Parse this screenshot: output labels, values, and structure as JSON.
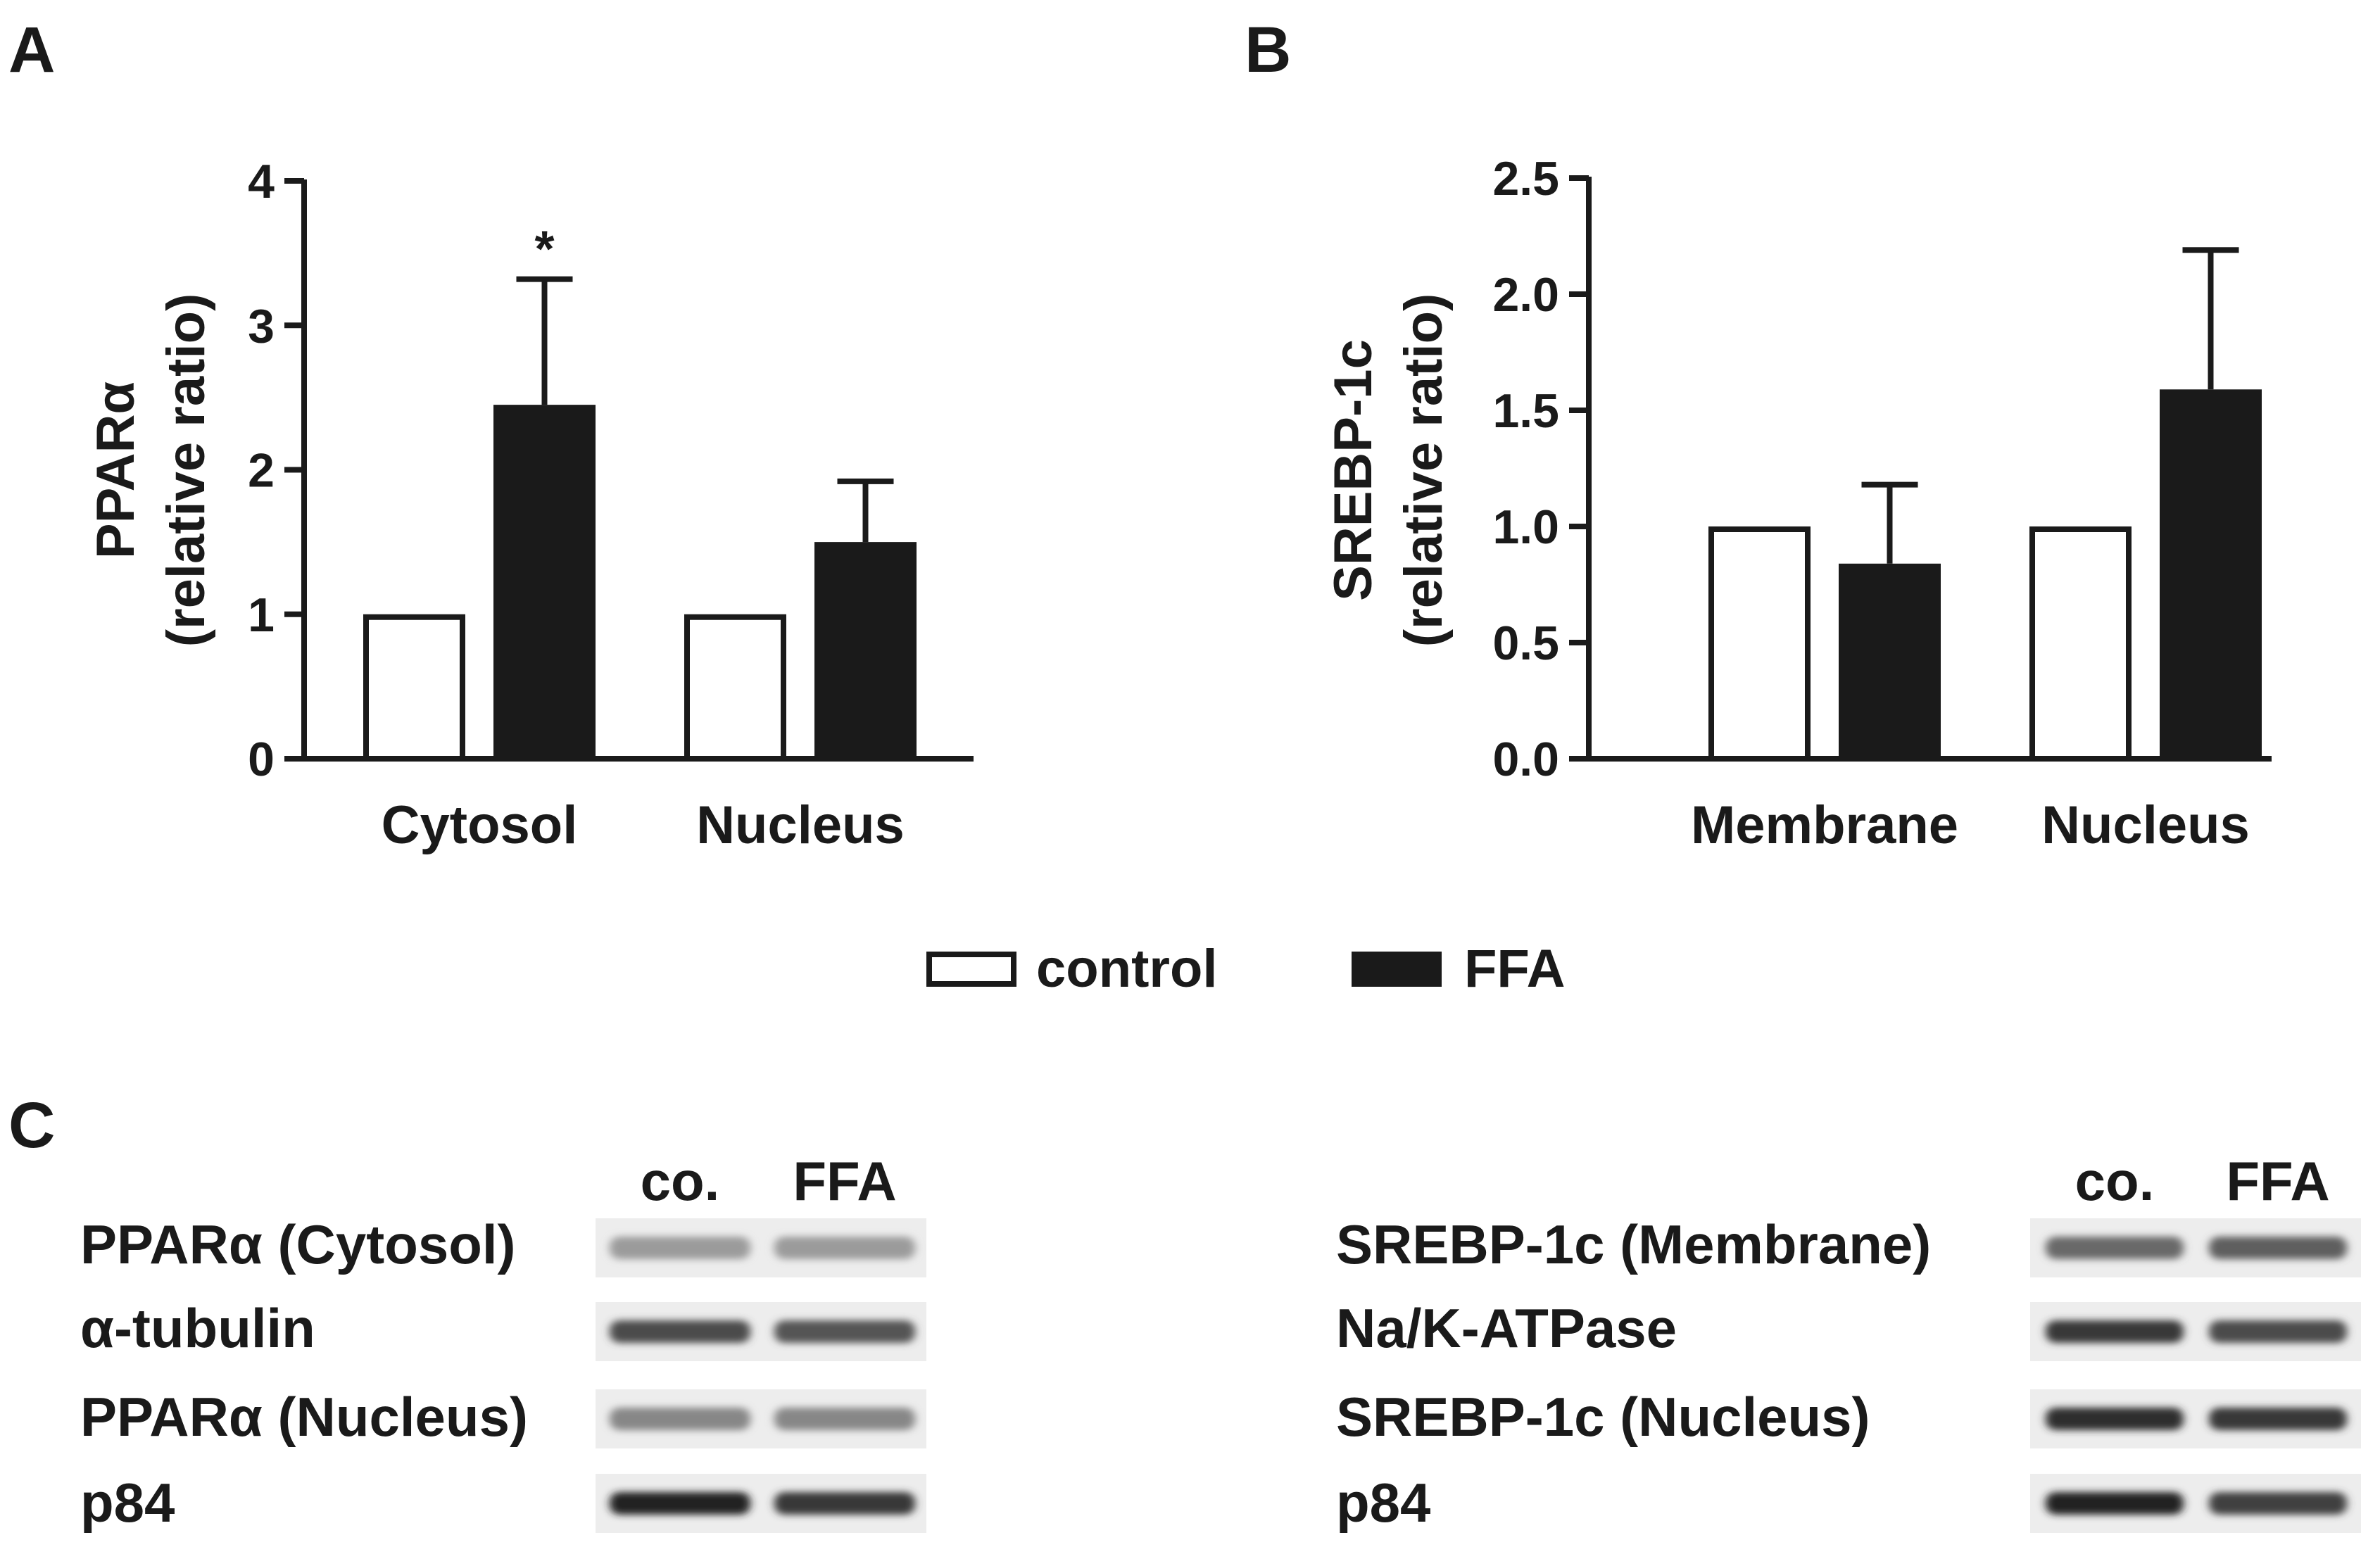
{
  "panels": {
    "a": "A",
    "b": "B",
    "c": "C"
  },
  "legend": {
    "control": "control",
    "ffa": "FFA"
  },
  "colors": {
    "control_fill": "#ffffff",
    "ffa_fill": "#1a1a1a",
    "stroke": "#1a1a1a"
  },
  "chart_data": [
    {
      "type": "bar",
      "panel": "A",
      "ylabel": "PPARα",
      "ylabel2": "(relative ratio)",
      "xlabel": "",
      "categories": [
        "Cytosol",
        "Nucleus"
      ],
      "ylim": [
        0,
        4
      ],
      "yticks": [
        "0",
        "1",
        "2",
        "3",
        "4"
      ],
      "ytick_values": [
        0,
        1,
        2,
        3,
        4
      ],
      "series": [
        {
          "name": "control",
          "values": [
            1.0,
            1.0
          ],
          "errors": [
            0,
            0
          ]
        },
        {
          "name": "FFA",
          "values": [
            2.45,
            1.5
          ],
          "errors": [
            0.87,
            0.42
          ]
        }
      ],
      "annotations": [
        {
          "text": "*",
          "category": "Cytosol",
          "series": "FFA"
        }
      ],
      "grid": false,
      "legend_position": "bottom-center"
    },
    {
      "type": "bar",
      "panel": "B",
      "ylabel": "SREBP-1c",
      "ylabel2": "(relative ratio)",
      "xlabel": "",
      "categories": [
        "Membrane",
        "Nucleus"
      ],
      "ylim": [
        0,
        2.5
      ],
      "yticks": [
        "0.0",
        "0.5",
        "1.0",
        "1.5",
        "2.0",
        "2.5"
      ],
      "ytick_values": [
        0,
        0.5,
        1.0,
        1.5,
        2.0,
        2.5
      ],
      "series": [
        {
          "name": "control",
          "values": [
            1.0,
            1.0
          ],
          "errors": [
            0,
            0
          ]
        },
        {
          "name": "FFA",
          "values": [
            0.84,
            1.59
          ],
          "errors": [
            0.34,
            0.6
          ]
        }
      ],
      "annotations": [],
      "grid": false,
      "legend_position": "bottom-center"
    }
  ],
  "blots": {
    "left": {
      "headers": [
        "co.",
        "FFA"
      ],
      "rows": [
        "PPARα (Cytosol)",
        "α-tubulin",
        "PPARα (Nucleus)",
        "p84"
      ],
      "intensity": [
        [
          0.35,
          0.35
        ],
        [
          0.75,
          0.7
        ],
        [
          0.45,
          0.45
        ],
        [
          0.95,
          0.85
        ]
      ]
    },
    "right": {
      "headers": [
        "co.",
        "FFA"
      ],
      "rows": [
        "SREBP-1c (Membrane)",
        "Na/K-ATPase",
        "SREBP-1c (Nucleus)",
        "p84"
      ],
      "intensity": [
        [
          0.6,
          0.65
        ],
        [
          0.85,
          0.75
        ],
        [
          0.9,
          0.85
        ],
        [
          0.95,
          0.8
        ]
      ]
    }
  }
}
